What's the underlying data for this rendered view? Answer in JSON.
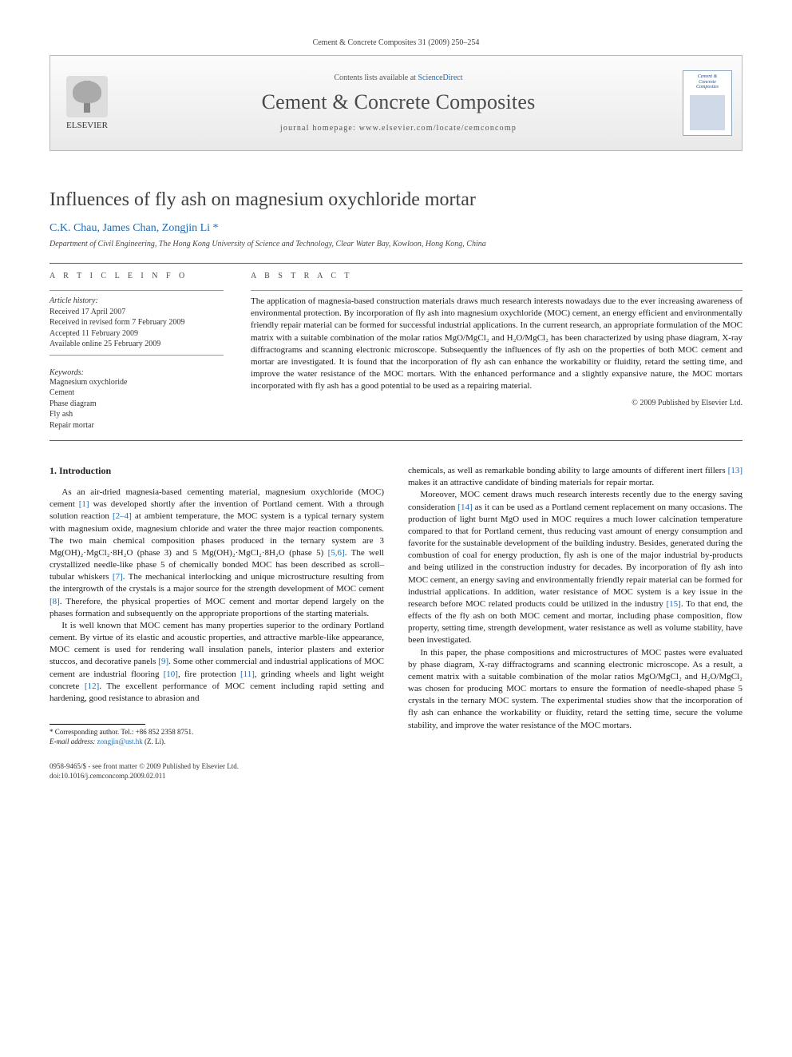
{
  "citation": "Cement & Concrete Composites 31 (2009) 250–254",
  "banner": {
    "publisher_label": "ELSEVIER",
    "contents_line_prefix": "Contents lists available at ",
    "contents_link": "ScienceDirect",
    "journal": "Cement & Concrete Composites",
    "homepage_prefix": "journal homepage: ",
    "homepage": "www.elsevier.com/locate/cemconcomp",
    "cover_text_1": "Cement &",
    "cover_text_2": "Concrete",
    "cover_text_3": "Composites"
  },
  "title": "Influences of fly ash on magnesium oxychloride mortar",
  "authors_line": "C.K. Chau, James Chan, Zongjin Li *",
  "affiliation": "Department of Civil Engineering, The Hong Kong University of Science and Technology, Clear Water Bay, Kowloon, Hong Kong, China",
  "info": {
    "head": "A R T I C L E   I N F O",
    "history_label": "Article history:",
    "received": "Received 17 April 2007",
    "revised": "Received in revised form 7 February 2009",
    "accepted": "Accepted 11 February 2009",
    "online": "Available online 25 February 2009",
    "kw_label": "Keywords:",
    "kw": [
      "Magnesium oxychloride",
      "Cement",
      "Phase diagram",
      "Fly ash",
      "Repair mortar"
    ]
  },
  "abstract": {
    "head": "A B S T R A C T",
    "text": "The application of magnesia-based construction materials draws much research interests nowadays due to the ever increasing awareness of environmental protection. By incorporation of fly ash into magnesium oxychloride (MOC) cement, an energy efficient and environmentally friendly repair material can be formed for successful industrial applications. In the current research, an appropriate formulation of the MOC matrix with a suitable combination of the molar ratios MgO/MgCl₂ and H₂O/MgCl₂ has been characterized by using phase diagram, X-ray diffractograms and scanning electronic microscope. Subsequently the influences of fly ash on the properties of both MOC cement and mortar are investigated. It is found that the incorporation of fly ash can enhance the workability or fluidity, retard the setting time, and improve the water resistance of the MOC mortars. With the enhanced performance and a slightly expansive nature, the MOC mortars incorporated with fly ash has a good potential to be used as a repairing material.",
    "copyright": "© 2009 Published by Elsevier Ltd."
  },
  "section1_head": "1. Introduction",
  "left_col": {
    "p1a": "As an air-dried magnesia-based cementing material, magnesium oxychloride (MOC) cement ",
    "r1": "[1]",
    "p1b": " was developed shortly after the invention of Portland cement. With a through solution reaction ",
    "r2": "[2–4]",
    "p1c": " at ambient temperature, the MOC system is a typical ternary system with magnesium oxide, magnesium chloride and water the three major reaction components. The two main chemical composition phases produced in the ternary system are 3 Mg(OH)₂·MgCl₂·8H₂O (phase 3) and 5 Mg(OH)₂·MgCl₂·8H₂O (phase 5) ",
    "r3": "[5,6]",
    "p1d": ". The well crystallized needle-like phase 5 of chemically bonded MOC has been described as scroll–tubular whiskers ",
    "r4": "[7]",
    "p1e": ". The mechanical interlocking and unique microstructure resulting from the intergrowth of the crystals is a major source for the strength development of MOC cement ",
    "r5": "[8]",
    "p1f": ". Therefore, the physical properties of MOC cement and mortar depend largely on the phases formation and subsequently on the appropriate proportions of the starting materials.",
    "p2a": "It is well known that MOC cement has many properties superior to the ordinary Portland cement. By virtue of its elastic and acoustic properties, and attractive marble-like appearance, MOC cement is used for rendering wall insulation panels, interior plasters and exterior stuccos, and decorative panels ",
    "r6": "[9]",
    "p2b": ". Some other commercial and industrial applications of MOC cement are industrial flooring ",
    "r7": "[10]",
    "p2c": ", fire protection ",
    "r8": "[11]",
    "p2d": ", grinding wheels and light weight concrete ",
    "r9": "[12]",
    "p2e": ". The excellent performance of MOC cement including rapid setting and hardening, good resistance to abrasion and"
  },
  "right_col": {
    "p1a": "chemicals, as well as remarkable bonding ability to large amounts of different inert fillers ",
    "r1": "[13]",
    "p1b": " makes it an attractive candidate of binding materials for repair mortar.",
    "p2a": "Moreover, MOC cement draws much research interests recently due to the energy saving consideration ",
    "r2": "[14]",
    "p2b": " as it can be used as a Portland cement replacement on many occasions. The production of light burnt MgO used in MOC requires a much lower calcination temperature compared to that for Portland cement, thus reducing vast amount of energy consumption and favorite for the sustainable development of the building industry. Besides, generated during the combustion of coal for energy production, fly ash is one of the major industrial by-products and being utilized in the construction industry for decades. By incorporation of fly ash into MOC cement, an energy saving and environmentally friendly repair material can be formed for industrial applications. In addition, water resistance of MOC system is a key issue in the research before MOC related products could be utilized in the industry ",
    "r3": "[15]",
    "p2c": ". To that end, the effects of the fly ash on both MOC cement and mortar, including phase composition, flow property, setting time, strength development, water resistance as well as volume stability, have been investigated.",
    "p3": "In this paper, the phase compositions and microstructures of MOC pastes were evaluated by phase diagram, X-ray diffractograms and scanning electronic microscope. As a result, a cement matrix with a suitable combination of the molar ratios MgO/MgCl₂ and H₂O/MgCl₂ was chosen for producing MOC mortars to ensure the formation of needle-shaped phase 5 crystals in the ternary MOC system. The experimental studies show that the incorporation of fly ash can enhance the workability or fluidity, retard the setting time, secure the volume stability, and improve the water resistance of the MOC mortars."
  },
  "footnote": {
    "corr": "* Corresponding author. Tel.: +86 852 2358 8751.",
    "email_label": "E-mail address: ",
    "email": "zongjin@ust.hk",
    "email_who": " (Z. Li)."
  },
  "footer": {
    "line1": "0958-9465/$ - see front matter © 2009 Published by Elsevier Ltd.",
    "line2": "doi:10.1016/j.cemconcomp.2009.02.011"
  },
  "colors": {
    "link": "#1b6bb6",
    "text": "#1a1a1a",
    "rule": "#5a5a5a",
    "banner_border": "#b8b8b8"
  }
}
